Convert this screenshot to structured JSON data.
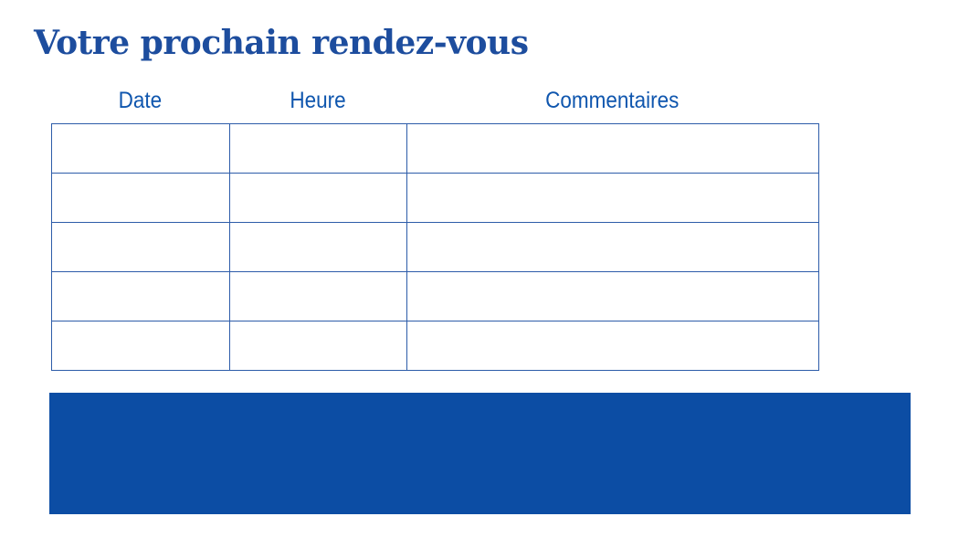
{
  "page": {
    "title": "Votre prochain rendez-vous"
  },
  "table": {
    "columns": [
      {
        "key": "date",
        "label": "Date"
      },
      {
        "key": "heure",
        "label": "Heure"
      },
      {
        "key": "commentaires",
        "label": "Commentaires"
      }
    ],
    "row_count": 5,
    "cells": [
      [
        "",
        "",
        ""
      ],
      [
        "",
        "",
        ""
      ],
      [
        "",
        "",
        ""
      ],
      [
        "",
        "",
        ""
      ],
      [
        "",
        "",
        ""
      ]
    ]
  },
  "banner": {
    "text": ""
  },
  "colors": {
    "title_text": "#1D4D9E",
    "header_text": "#0F56AE",
    "table_border": "#2D5CA9",
    "banner_fill": "#0C4DA4",
    "background": "#FFFFFF"
  }
}
